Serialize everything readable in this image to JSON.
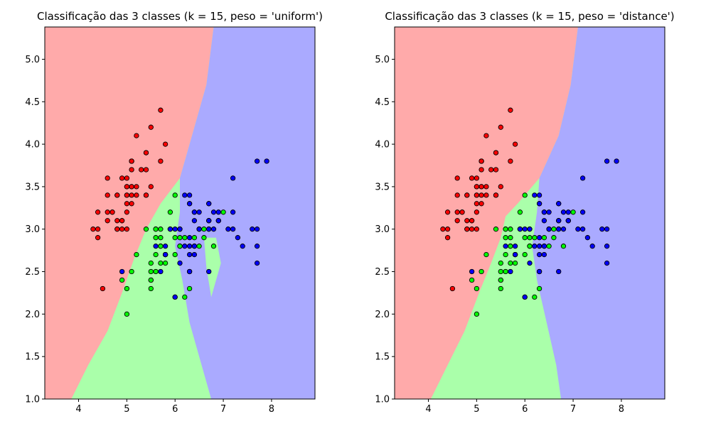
{
  "chart_data": [
    {
      "type": "scatter",
      "title": "Classificação das 3 classes (k = 15, peso = 'uniform')",
      "xlabel": "",
      "ylabel": "",
      "xlim": [
        3.3,
        8.9
      ],
      "ylim": [
        1.0,
        5.38
      ],
      "xticks": [
        "4",
        "5",
        "6",
        "7",
        "8"
      ],
      "yticks": [
        "1.0",
        "1.5",
        "2.0",
        "2.5",
        "3.0",
        "3.5",
        "4.0",
        "4.5",
        "5.0"
      ],
      "grid": false,
      "legend": "none",
      "region_colors": {
        "0": "#FFAAAA",
        "1": "#AAFFAA",
        "2": "#AAAAFF"
      },
      "series": [
        {
          "class": 0,
          "color": "#FF0000",
          "x": [
            5.1,
            4.9,
            4.7,
            4.6,
            5.0,
            5.4,
            4.6,
            5.0,
            4.4,
            4.9,
            5.4,
            4.8,
            4.8,
            4.3,
            5.8,
            5.7,
            5.4,
            5.1,
            5.7,
            5.1,
            5.4,
            5.1,
            4.6,
            5.1,
            4.8,
            5.0,
            5.0,
            5.2,
            5.2,
            4.7,
            4.8,
            5.4,
            5.2,
            5.5,
            4.9,
            5.0,
            5.5,
            4.9,
            4.4,
            5.1,
            5.0,
            4.5,
            4.4,
            5.0,
            5.1,
            4.8,
            5.1,
            4.6,
            5.3,
            5.0
          ],
          "y": [
            3.5,
            3.0,
            3.2,
            3.1,
            3.6,
            3.9,
            3.4,
            3.4,
            2.9,
            3.1,
            3.7,
            3.4,
            3.0,
            3.0,
            4.0,
            4.4,
            3.9,
            3.5,
            3.8,
            3.8,
            3.4,
            3.7,
            3.6,
            3.3,
            3.4,
            3.0,
            3.4,
            3.5,
            3.4,
            3.2,
            3.1,
            3.4,
            4.1,
            4.2,
            3.1,
            3.2,
            3.5,
            3.6,
            3.0,
            3.4,
            3.5,
            2.3,
            3.2,
            3.5,
            3.8,
            3.0,
            3.8,
            3.2,
            3.7,
            3.3
          ]
        },
        {
          "class": 1,
          "color": "#00FF00",
          "x": [
            7.0,
            6.4,
            6.9,
            5.5,
            6.5,
            5.7,
            6.3,
            4.9,
            6.6,
            5.2,
            5.0,
            5.9,
            6.0,
            6.1,
            5.6,
            6.7,
            5.6,
            5.8,
            6.2,
            5.6,
            5.9,
            6.1,
            6.3,
            6.1,
            6.4,
            6.6,
            6.8,
            6.7,
            6.0,
            5.7,
            5.5,
            5.5,
            5.8,
            6.0,
            5.4,
            6.0,
            6.7,
            6.3,
            5.6,
            5.5,
            5.5,
            6.1,
            5.8,
            5.0,
            5.6,
            5.7,
            5.7,
            6.2,
            5.1,
            5.7
          ],
          "y": [
            3.2,
            3.2,
            3.1,
            2.3,
            2.8,
            2.8,
            3.3,
            2.4,
            2.9,
            2.7,
            2.0,
            3.0,
            2.2,
            2.9,
            2.9,
            3.1,
            3.0,
            2.7,
            2.2,
            2.5,
            3.2,
            2.8,
            2.5,
            2.8,
            2.9,
            3.0,
            2.8,
            3.0,
            2.9,
            2.6,
            2.4,
            2.4,
            2.7,
            2.7,
            3.0,
            3.4,
            3.1,
            2.3,
            3.0,
            2.5,
            2.6,
            3.0,
            2.6,
            2.3,
            2.7,
            3.0,
            2.9,
            2.9,
            2.5,
            2.8
          ]
        },
        {
          "class": 2,
          "color": "#0000FF",
          "x": [
            6.3,
            5.8,
            7.1,
            6.3,
            6.5,
            7.6,
            4.9,
            7.3,
            6.7,
            7.2,
            6.5,
            6.4,
            6.8,
            5.7,
            5.8,
            6.4,
            6.5,
            7.7,
            7.7,
            6.0,
            6.9,
            5.6,
            7.7,
            6.3,
            6.7,
            7.2,
            6.2,
            6.1,
            6.4,
            7.2,
            7.4,
            7.9,
            6.4,
            6.3,
            6.1,
            7.7,
            6.3,
            6.4,
            6.0,
            6.9,
            6.7,
            6.9,
            5.8,
            6.8,
            6.7,
            6.7,
            6.3,
            6.5,
            6.2,
            5.9
          ],
          "y": [
            3.3,
            2.7,
            3.0,
            2.9,
            3.0,
            3.0,
            2.5,
            2.9,
            2.5,
            3.6,
            3.2,
            2.7,
            3.0,
            2.5,
            2.8,
            3.2,
            3.0,
            3.8,
            2.6,
            2.2,
            3.2,
            2.8,
            2.8,
            2.7,
            3.3,
            3.2,
            2.8,
            3.0,
            2.8,
            3.0,
            2.8,
            3.8,
            2.8,
            2.8,
            2.6,
            3.0,
            3.4,
            3.1,
            3.0,
            3.1,
            3.1,
            3.1,
            2.7,
            3.2,
            3.3,
            3.0,
            2.5,
            3.0,
            3.4,
            3.0
          ]
        }
      ]
    },
    {
      "type": "scatter",
      "title": "Classificação das 3 classes (k = 15, peso = 'distance')",
      "xlabel": "",
      "ylabel": "",
      "xlim": [
        3.3,
        8.9
      ],
      "ylim": [
        1.0,
        5.38
      ],
      "xticks": [
        "4",
        "5",
        "6",
        "7",
        "8"
      ],
      "yticks": [
        "1.0",
        "1.5",
        "2.0",
        "2.5",
        "3.0",
        "3.5",
        "4.0",
        "4.5",
        "5.0"
      ],
      "grid": false,
      "legend": "none",
      "region_colors": {
        "0": "#FFAAAA",
        "1": "#AAFFAA",
        "2": "#AAAAFF"
      },
      "series": [
        {
          "class": 0,
          "color": "#FF0000",
          "x": [
            5.1,
            4.9,
            4.7,
            4.6,
            5.0,
            5.4,
            4.6,
            5.0,
            4.4,
            4.9,
            5.4,
            4.8,
            4.8,
            4.3,
            5.8,
            5.7,
            5.4,
            5.1,
            5.7,
            5.1,
            5.4,
            5.1,
            4.6,
            5.1,
            4.8,
            5.0,
            5.0,
            5.2,
            5.2,
            4.7,
            4.8,
            5.4,
            5.2,
            5.5,
            4.9,
            5.0,
            5.5,
            4.9,
            4.4,
            5.1,
            5.0,
            4.5,
            4.4,
            5.0,
            5.1,
            4.8,
            5.1,
            4.6,
            5.3,
            5.0
          ],
          "y": [
            3.5,
            3.0,
            3.2,
            3.1,
            3.6,
            3.9,
            3.4,
            3.4,
            2.9,
            3.1,
            3.7,
            3.4,
            3.0,
            3.0,
            4.0,
            4.4,
            3.9,
            3.5,
            3.8,
            3.8,
            3.4,
            3.7,
            3.6,
            3.3,
            3.4,
            3.0,
            3.4,
            3.5,
            3.4,
            3.2,
            3.1,
            3.4,
            4.1,
            4.2,
            3.1,
            3.2,
            3.5,
            3.6,
            3.0,
            3.4,
            3.5,
            2.3,
            3.2,
            3.5,
            3.8,
            3.0,
            3.8,
            3.2,
            3.7,
            3.3
          ]
        },
        {
          "class": 1,
          "color": "#00FF00",
          "x": [
            7.0,
            6.4,
            6.9,
            5.5,
            6.5,
            5.7,
            6.3,
            4.9,
            6.6,
            5.2,
            5.0,
            5.9,
            6.0,
            6.1,
            5.6,
            6.7,
            5.6,
            5.8,
            6.2,
            5.6,
            5.9,
            6.1,
            6.3,
            6.1,
            6.4,
            6.6,
            6.8,
            6.7,
            6.0,
            5.7,
            5.5,
            5.5,
            5.8,
            6.0,
            5.4,
            6.0,
            6.7,
            6.3,
            5.6,
            5.5,
            5.5,
            6.1,
            5.8,
            5.0,
            5.6,
            5.7,
            5.7,
            6.2,
            5.1,
            5.7
          ],
          "y": [
            3.2,
            3.2,
            3.1,
            2.3,
            2.8,
            2.8,
            3.3,
            2.4,
            2.9,
            2.7,
            2.0,
            3.0,
            2.2,
            2.9,
            2.9,
            3.1,
            3.0,
            2.7,
            2.2,
            2.5,
            3.2,
            2.8,
            2.5,
            2.8,
            2.9,
            3.0,
            2.8,
            3.0,
            2.9,
            2.6,
            2.4,
            2.4,
            2.7,
            2.7,
            3.0,
            3.4,
            3.1,
            2.3,
            3.0,
            2.5,
            2.6,
            3.0,
            2.6,
            2.3,
            2.7,
            3.0,
            2.9,
            2.9,
            2.5,
            2.8
          ]
        },
        {
          "class": 2,
          "color": "#0000FF",
          "x": [
            6.3,
            5.8,
            7.1,
            6.3,
            6.5,
            7.6,
            4.9,
            7.3,
            6.7,
            7.2,
            6.5,
            6.4,
            6.8,
            5.7,
            5.8,
            6.4,
            6.5,
            7.7,
            7.7,
            6.0,
            6.9,
            5.6,
            7.7,
            6.3,
            6.7,
            7.2,
            6.2,
            6.1,
            6.4,
            7.2,
            7.4,
            7.9,
            6.4,
            6.3,
            6.1,
            7.7,
            6.3,
            6.4,
            6.0,
            6.9,
            6.7,
            6.9,
            5.8,
            6.8,
            6.7,
            6.7,
            6.3,
            6.5,
            6.2,
            5.9
          ],
          "y": [
            3.3,
            2.7,
            3.0,
            2.9,
            3.0,
            3.0,
            2.5,
            2.9,
            2.5,
            3.6,
            3.2,
            2.7,
            3.0,
            2.5,
            2.8,
            3.2,
            3.0,
            3.8,
            2.6,
            2.2,
            3.2,
            2.8,
            2.8,
            2.7,
            3.3,
            3.2,
            2.8,
            3.0,
            2.8,
            3.0,
            2.8,
            3.8,
            2.8,
            2.8,
            2.6,
            3.0,
            3.4,
            3.1,
            3.0,
            3.1,
            3.1,
            3.1,
            2.7,
            3.2,
            3.3,
            3.0,
            2.5,
            3.0,
            3.4,
            3.0
          ]
        }
      ]
    }
  ]
}
